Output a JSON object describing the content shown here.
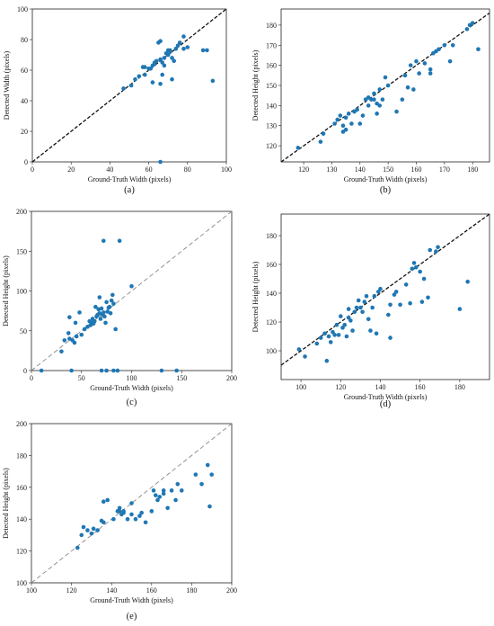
{
  "colors": {
    "point": "#1f77b4",
    "identity_dark": "#111111",
    "identity_light": "#888888"
  },
  "chart_data": [
    {
      "id": "a",
      "type": "scatter",
      "caption": "(a)",
      "xlabel": "Ground-Truth Width (pixels)",
      "ylabel": "Detected Width (pixels)",
      "xlim": [
        0,
        100
      ],
      "ylim": [
        0,
        100
      ],
      "xticks": [
        0,
        20,
        40,
        60,
        80,
        100
      ],
      "yticks": [
        0,
        20,
        40,
        60,
        80,
        100
      ],
      "identity_line": "dark-dashed",
      "grid": false,
      "points": [
        [
          47,
          48
        ],
        [
          51,
          50
        ],
        [
          53,
          54
        ],
        [
          55,
          56
        ],
        [
          57,
          62
        ],
        [
          58,
          57
        ],
        [
          58,
          62
        ],
        [
          60,
          61
        ],
        [
          61,
          61
        ],
        [
          62,
          63
        ],
        [
          63,
          64
        ],
        [
          63,
          65
        ],
        [
          64,
          66
        ],
        [
          65,
          78
        ],
        [
          66,
          79
        ],
        [
          66,
          67
        ],
        [
          67,
          57
        ],
        [
          67,
          65
        ],
        [
          68,
          68
        ],
        [
          68,
          63
        ],
        [
          69,
          71
        ],
        [
          70,
          70
        ],
        [
          70,
          73
        ],
        [
          71,
          72
        ],
        [
          71,
          73
        ],
        [
          72,
          54
        ],
        [
          72,
          68
        ],
        [
          73,
          66
        ],
        [
          74,
          74
        ],
        [
          75,
          76
        ],
        [
          76,
          78
        ],
        [
          78,
          74
        ],
        [
          78,
          82
        ],
        [
          80,
          75
        ],
        [
          88,
          73
        ],
        [
          90,
          73
        ],
        [
          93,
          53
        ],
        [
          66,
          0
        ],
        [
          62,
          52
        ],
        [
          66,
          51
        ]
      ]
    },
    {
      "id": "b",
      "type": "scatter",
      "caption": "(b)",
      "xlabel": "Ground-Truth Width (pixels)",
      "ylabel": "Detected Height (pixels)",
      "xlim": [
        112,
        186
      ],
      "ylim": [
        112,
        188
      ],
      "xticks": [
        120,
        130,
        140,
        150,
        160,
        170,
        180
      ],
      "yticks": [
        120,
        130,
        140,
        150,
        160,
        170,
        180
      ],
      "identity_line": "dark-dashed",
      "grid": false,
      "points": [
        [
          118,
          119
        ],
        [
          126,
          122
        ],
        [
          127,
          126
        ],
        [
          131,
          131
        ],
        [
          132,
          133
        ],
        [
          133,
          135
        ],
        [
          134,
          130
        ],
        [
          134,
          127
        ],
        [
          135,
          128
        ],
        [
          135,
          134
        ],
        [
          136,
          136
        ],
        [
          137,
          131
        ],
        [
          138,
          137
        ],
        [
          139,
          138
        ],
        [
          140,
          131
        ],
        [
          141,
          135
        ],
        [
          142,
          143
        ],
        [
          143,
          140
        ],
        [
          143,
          144
        ],
        [
          144,
          143
        ],
        [
          145,
          143
        ],
        [
          145,
          146
        ],
        [
          146,
          136
        ],
        [
          146,
          141
        ],
        [
          147,
          148
        ],
        [
          147,
          140
        ],
        [
          148,
          143
        ],
        [
          149,
          154
        ],
        [
          150,
          150
        ],
        [
          153,
          137
        ],
        [
          155,
          143
        ],
        [
          156,
          155
        ],
        [
          157,
          149
        ],
        [
          158,
          160
        ],
        [
          159,
          148
        ],
        [
          160,
          162
        ],
        [
          161,
          156
        ],
        [
          163,
          161
        ],
        [
          165,
          156
        ],
        [
          165,
          158
        ],
        [
          166,
          166
        ],
        [
          167,
          167
        ],
        [
          168,
          168
        ],
        [
          170,
          170
        ],
        [
          172,
          162
        ],
        [
          173,
          170
        ],
        [
          178,
          178
        ],
        [
          179,
          180
        ],
        [
          180,
          181
        ],
        [
          182,
          168
        ]
      ]
    },
    {
      "id": "c",
      "type": "scatter",
      "caption": "(c)",
      "xlabel": "Ground-Truth Width (pixels)",
      "ylabel": "Detected Height (pixels)",
      "xlim": [
        0,
        200
      ],
      "ylim": [
        0,
        200
      ],
      "xticks": [
        0,
        50,
        100,
        150,
        200
      ],
      "yticks": [
        0,
        50,
        100,
        150,
        200
      ],
      "identity_line": "light-dashed",
      "grid": false,
      "points": [
        [
          30,
          24
        ],
        [
          33,
          38
        ],
        [
          37,
          47
        ],
        [
          38,
          67
        ],
        [
          38,
          40
        ],
        [
          41,
          38
        ],
        [
          43,
          35
        ],
        [
          44,
          60
        ],
        [
          45,
          43
        ],
        [
          48,
          73
        ],
        [
          50,
          45
        ],
        [
          53,
          52
        ],
        [
          56,
          55
        ],
        [
          58,
          62
        ],
        [
          59,
          57
        ],
        [
          60,
          60
        ],
        [
          61,
          65
        ],
        [
          62,
          59
        ],
        [
          63,
          62
        ],
        [
          64,
          80
        ],
        [
          65,
          68
        ],
        [
          66,
          70
        ],
        [
          67,
          77
        ],
        [
          68,
          92
        ],
        [
          68,
          72
        ],
        [
          69,
          65
        ],
        [
          70,
          78
        ],
        [
          71,
          70
        ],
        [
          72,
          73
        ],
        [
          73,
          68
        ],
        [
          74,
          60
        ],
        [
          75,
          86
        ],
        [
          76,
          74
        ],
        [
          77,
          79
        ],
        [
          78,
          80
        ],
        [
          79,
          72
        ],
        [
          80,
          88
        ],
        [
          81,
          95
        ],
        [
          82,
          84
        ],
        [
          84,
          52
        ],
        [
          100,
          106
        ],
        [
          72,
          163
        ],
        [
          88,
          163
        ],
        [
          10,
          0
        ],
        [
          40,
          0
        ],
        [
          70,
          0
        ],
        [
          75,
          0
        ],
        [
          82,
          0
        ],
        [
          86,
          0
        ],
        [
          130,
          0
        ],
        [
          145,
          0
        ]
      ]
    },
    {
      "id": "d",
      "type": "scatter",
      "caption": "(d)",
      "xlabel": "Ground-Truth Width (pixels)",
      "ylabel": "Detected Height (pixels)",
      "xlim": [
        90,
        195
      ],
      "ylim": [
        80,
        195
      ],
      "xticks": [
        100,
        120,
        140,
        160,
        180
      ],
      "yticks": [
        100,
        120,
        140,
        160,
        180
      ],
      "identity_line": "dark-dashed",
      "grid": false,
      "points": [
        [
          99,
          101
        ],
        [
          102,
          96
        ],
        [
          108,
          105
        ],
        [
          110,
          109
        ],
        [
          112,
          112
        ],
        [
          113,
          93
        ],
        [
          114,
          110
        ],
        [
          115,
          106
        ],
        [
          116,
          113
        ],
        [
          117,
          111
        ],
        [
          118,
          118
        ],
        [
          119,
          111
        ],
        [
          120,
          124
        ],
        [
          121,
          116
        ],
        [
          122,
          118
        ],
        [
          123,
          110
        ],
        [
          124,
          123
        ],
        [
          124,
          129
        ],
        [
          125,
          121
        ],
        [
          126,
          114
        ],
        [
          127,
          127
        ],
        [
          128,
          130
        ],
        [
          129,
          135
        ],
        [
          130,
          130
        ],
        [
          131,
          127
        ],
        [
          132,
          134
        ],
        [
          133,
          138
        ],
        [
          134,
          122
        ],
        [
          135,
          114
        ],
        [
          136,
          130
        ],
        [
          137,
          138
        ],
        [
          138,
          112
        ],
        [
          139,
          141
        ],
        [
          140,
          143
        ],
        [
          144,
          125
        ],
        [
          145,
          132
        ],
        [
          145,
          109
        ],
        [
          147,
          139
        ],
        [
          148,
          141
        ],
        [
          150,
          132
        ],
        [
          153,
          146
        ],
        [
          155,
          133
        ],
        [
          156,
          157
        ],
        [
          157,
          161
        ],
        [
          158,
          158
        ],
        [
          160,
          155
        ],
        [
          161,
          134
        ],
        [
          162,
          150
        ],
        [
          164,
          137
        ],
        [
          165,
          170
        ],
        [
          168,
          169
        ],
        [
          169,
          172
        ],
        [
          180,
          129
        ],
        [
          184,
          148
        ]
      ]
    },
    {
      "id": "e",
      "type": "scatter",
      "caption": "(e)",
      "xlabel": "Ground-Truth Width (pixels)",
      "ylabel": "Detected Height (pixels)",
      "xlim": [
        100,
        200
      ],
      "ylim": [
        100,
        200
      ],
      "xticks": [
        100,
        120,
        140,
        160,
        180,
        200
      ],
      "yticks": [
        100,
        120,
        140,
        160,
        180,
        200
      ],
      "identity_line": "light-dashed",
      "grid": false,
      "points": [
        [
          123,
          122
        ],
        [
          125,
          130
        ],
        [
          126,
          135
        ],
        [
          128,
          133
        ],
        [
          130,
          131
        ],
        [
          131,
          134
        ],
        [
          133,
          133
        ],
        [
          135,
          139
        ],
        [
          136,
          138
        ],
        [
          136,
          151
        ],
        [
          138,
          152
        ],
        [
          141,
          140
        ],
        [
          143,
          145
        ],
        [
          144,
          145
        ],
        [
          144,
          147
        ],
        [
          145,
          143
        ],
        [
          146,
          145
        ],
        [
          146,
          144
        ],
        [
          148,
          140
        ],
        [
          150,
          143
        ],
        [
          150,
          150
        ],
        [
          152,
          140
        ],
        [
          154,
          142
        ],
        [
          155,
          144
        ],
        [
          157,
          138
        ],
        [
          160,
          145
        ],
        [
          161,
          158
        ],
        [
          162,
          155
        ],
        [
          163,
          152
        ],
        [
          164,
          154
        ],
        [
          166,
          156
        ],
        [
          166,
          158
        ],
        [
          168,
          147
        ],
        [
          170,
          158
        ],
        [
          172,
          152
        ],
        [
          173,
          162
        ],
        [
          175,
          158
        ],
        [
          182,
          168
        ],
        [
          185,
          162
        ],
        [
          188,
          174
        ],
        [
          189,
          148
        ],
        [
          190,
          168
        ]
      ]
    }
  ]
}
